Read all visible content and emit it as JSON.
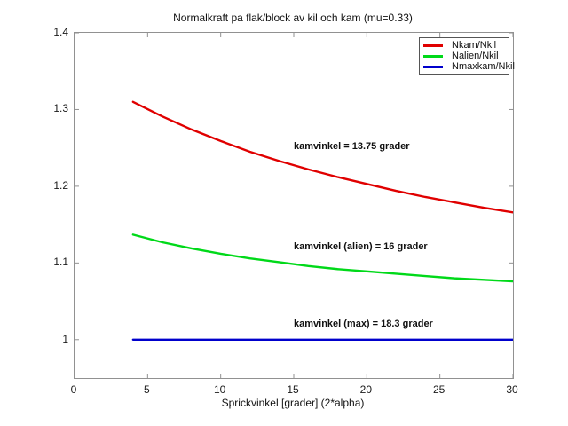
{
  "chart_data": {
    "type": "line",
    "title": "Normalkraft pa flak/block av kil och kam (mu=0.33)",
    "xlabel": "Sprickvinkel [grader] (2*alpha)",
    "ylabel": "",
    "xlim": [
      0,
      30
    ],
    "ylim": [
      0.95,
      1.4
    ],
    "x_ticks": [
      0,
      5,
      10,
      15,
      20,
      25,
      30
    ],
    "y_ticks": [
      1,
      1.1,
      1.2,
      1.3,
      1.4
    ],
    "grid": false,
    "legend_position": "top-right",
    "frame_color": "#919191",
    "x": [
      4,
      6,
      8,
      10,
      12,
      14,
      16,
      18,
      20,
      22,
      24,
      26,
      28,
      30
    ],
    "series": [
      {
        "name": "Nkam/Nkil",
        "color": "#e00000",
        "values": [
          1.31,
          1.291,
          1.274,
          1.259,
          1.245,
          1.233,
          1.222,
          1.212,
          1.203,
          1.194,
          1.186,
          1.179,
          1.172,
          1.166
        ]
      },
      {
        "name": "Nalien/Nkil",
        "color": "#00d919",
        "values": [
          1.137,
          1.127,
          1.119,
          1.112,
          1.106,
          1.101,
          1.096,
          1.092,
          1.089,
          1.086,
          1.083,
          1.08,
          1.078,
          1.076
        ]
      },
      {
        "name": "Nmaxkam/Nkil",
        "color": "#0000cc",
        "values": [
          1.0,
          1.0,
          1.0,
          1.0,
          1.0,
          1.0,
          1.0,
          1.0,
          1.0,
          1.0,
          1.0,
          1.0,
          1.0,
          1.0
        ]
      }
    ],
    "annotations": [
      {
        "text": "kamvinkel = 13.75 grader",
        "x": 15,
        "y": 1.251
      },
      {
        "text": "kamvinkel (alien) = 16 grader",
        "x": 15,
        "y": 1.12
      },
      {
        "text": "kamvinkel (max) = 18.3 grader",
        "x": 15,
        "y": 1.019
      }
    ]
  }
}
